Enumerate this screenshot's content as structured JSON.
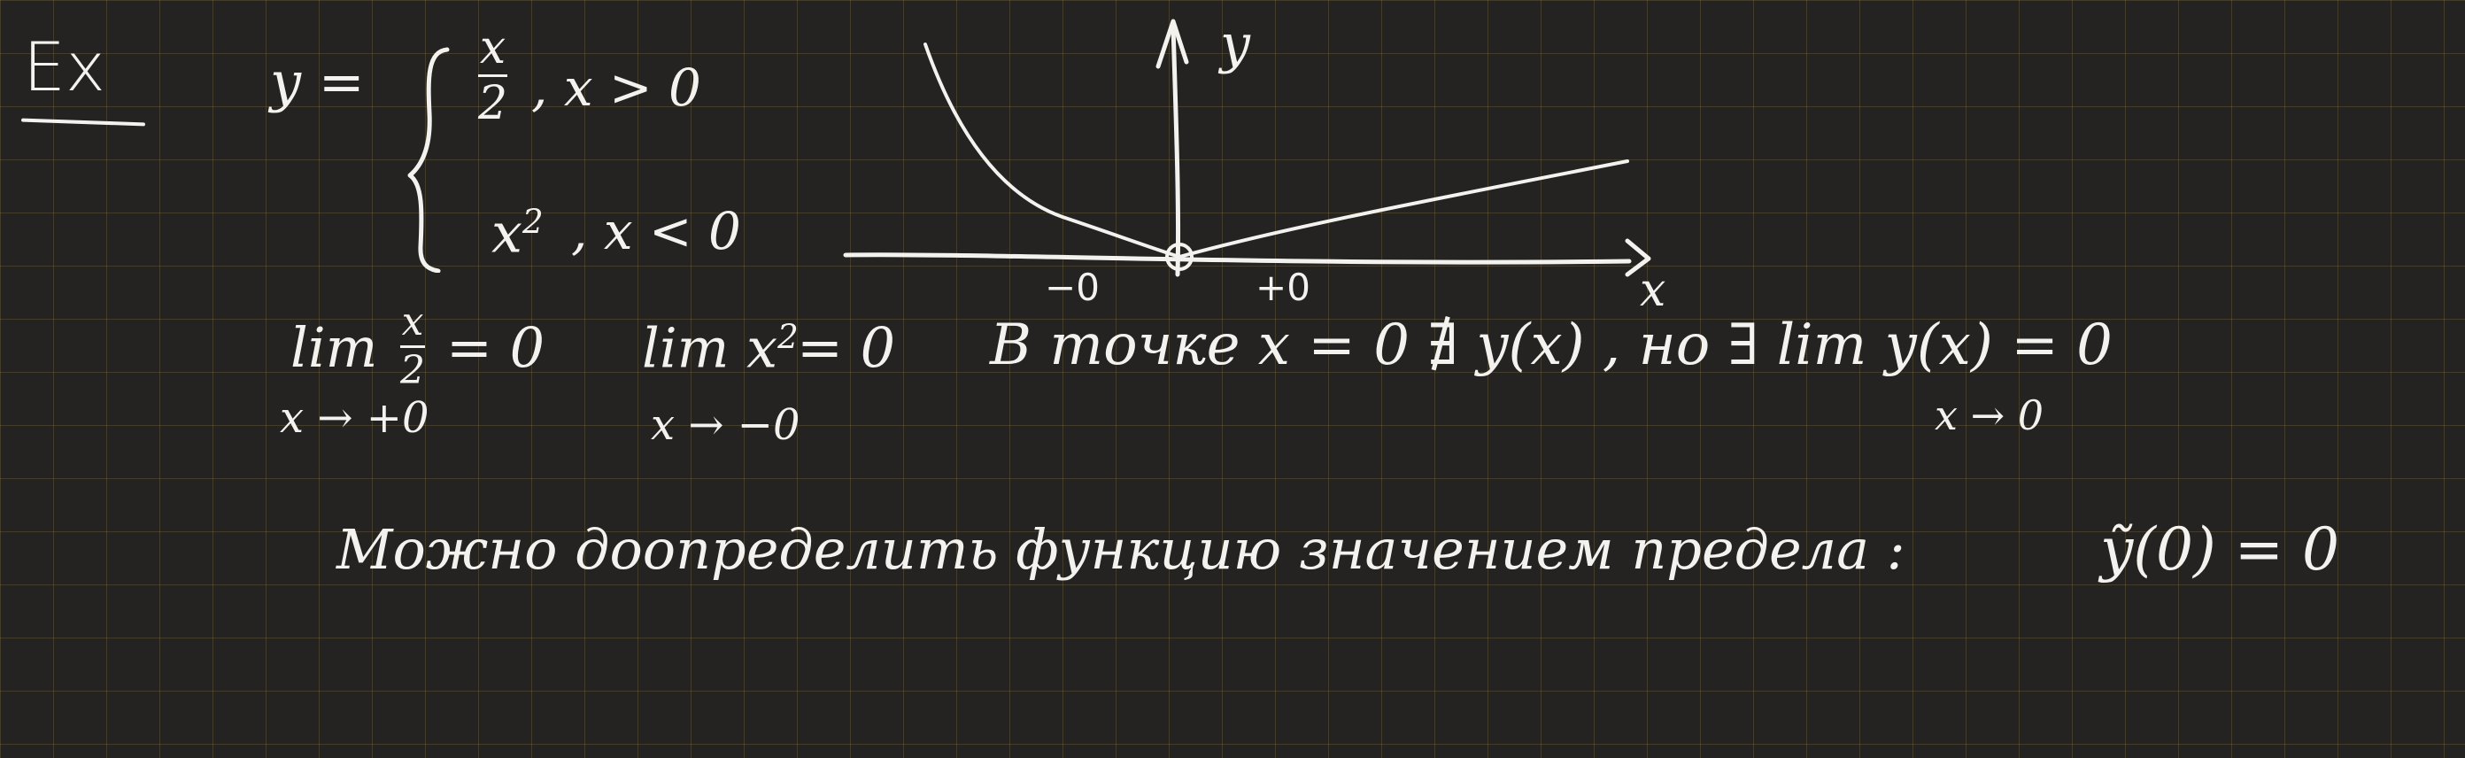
{
  "example": {
    "label": "Ex"
  },
  "definition": {
    "lhs": "y =",
    "piece1_num": "x",
    "piece1_den": "2",
    "piece1_cond": ", x > 0",
    "piece2_base": "x",
    "piece2_exp": "2",
    "piece2_cond": ", x < 0"
  },
  "graph": {
    "y_axis_label": "y",
    "x_axis_label": "x",
    "left_tick": "−0",
    "right_tick": "+0"
  },
  "limits": {
    "right_lim": "lim",
    "right_num": "x",
    "right_den": "2",
    "right_eq": "= 0",
    "right_sub": "x → +0",
    "left_lim": "lim x",
    "left_exp": "2",
    "left_eq": "= 0",
    "left_sub": "x → −0"
  },
  "statement": {
    "text": "В точке x = 0 ∄ y(x) , но ∃ lim y(x) = 0",
    "sub": "x → 0"
  },
  "conclusion": {
    "text": "Можно доопределить функцию значением предела :",
    "formula": "ỹ(0) = 0"
  }
}
